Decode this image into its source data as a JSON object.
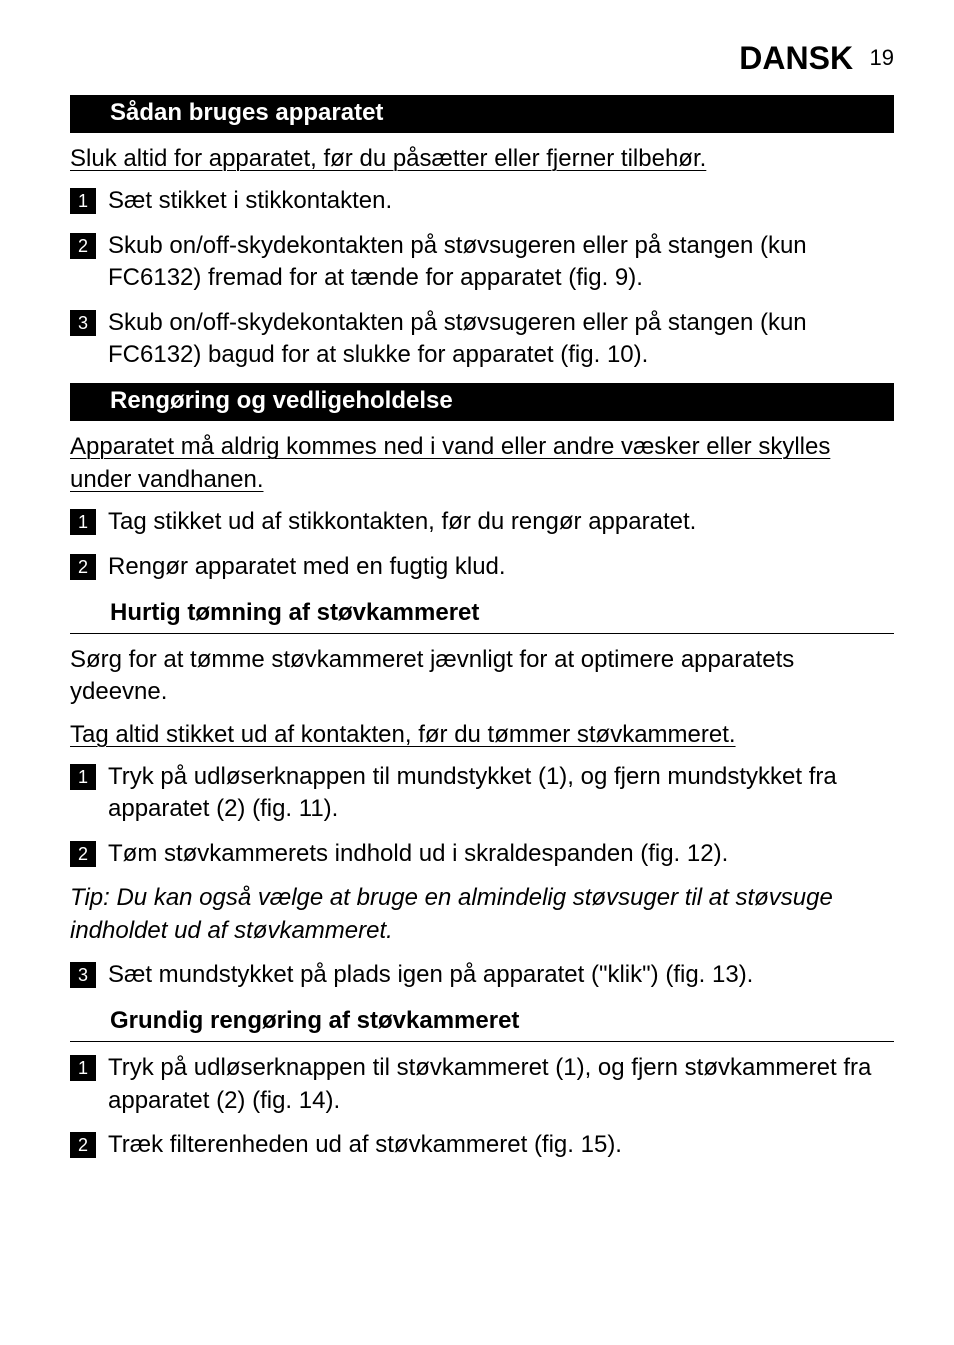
{
  "header": {
    "title": "DANSK",
    "page": "19"
  },
  "sec1": {
    "title": "Sådan bruges apparatet",
    "intro": "Sluk altid for apparatet, før du påsætter eller fjerner tilbehør.",
    "steps": [
      {
        "n": "1",
        "t": "Sæt stikket i stikkontakten."
      },
      {
        "n": "2",
        "t": "Skub on/off-skydekontakten på støvsugeren eller på stangen (kun FC6132) fremad for at tænde for apparatet (fig. 9)."
      },
      {
        "n": "3",
        "t": "Skub on/off-skydekontakten på støvsugeren eller på stangen (kun FC6132) bagud for at slukke for apparatet (fig. 10)."
      }
    ]
  },
  "sec2": {
    "title": "Rengøring og vedligeholdelse",
    "intro": "Apparatet må aldrig kommes ned i vand eller andre væsker eller skylles under vandhanen.",
    "steps": [
      {
        "n": "1",
        "t": "Tag stikket ud af stikkontakten, før du rengør apparatet."
      },
      {
        "n": "2",
        "t": "Rengør apparatet med en fugtig klud."
      }
    ]
  },
  "sec2a": {
    "title": "Hurtig tømning af støvkammeret",
    "para": "Sørg for at tømme støvkammeret jævnligt for at  optimere apparatets ydeevne.",
    "underline": "Tag altid stikket ud af kontakten, før du tømmer støvkammeret.",
    "steps12": [
      {
        "n": "1",
        "t": "Tryk på udløserknappen til mundstykket (1), og fjern mundstykket fra apparatet (2) (fig. 11)."
      },
      {
        "n": "2",
        "t": "Tøm støvkammerets indhold ud i skraldespanden (fig. 12)."
      }
    ],
    "tip": "Tip: Du kan også vælge at bruge en almindelig støvsuger til at støvsuge indholdet ud af støvkammeret.",
    "step3": {
      "n": "3",
      "t": "Sæt mundstykket på plads igen på apparatet (\"klik\") (fig. 13)."
    }
  },
  "sec2b": {
    "title": "Grundig rengøring af støvkammeret",
    "steps": [
      {
        "n": "1",
        "t": "Tryk på udløserknappen til støvkammeret (1), og fjern støvkammeret fra apparatet (2) (fig. 14)."
      },
      {
        "n": "2",
        "t": "Træk filterenheden ud af støvkammeret (fig. 15)."
      }
    ]
  }
}
